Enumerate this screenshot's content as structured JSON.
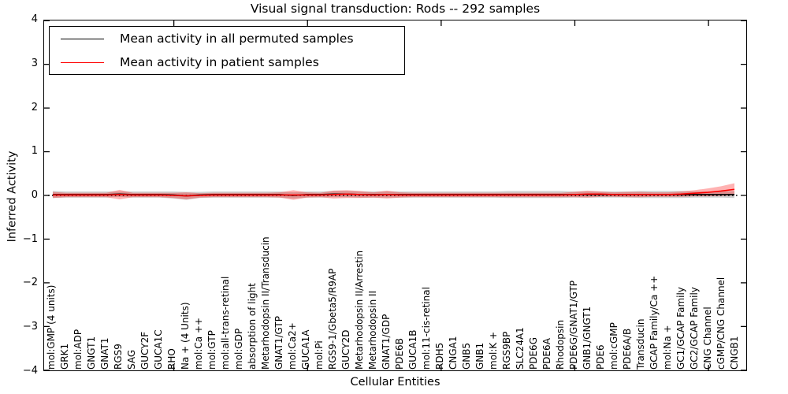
{
  "title": "Visual signal transduction: Rods -- 292 samples",
  "axes": {
    "xlabel": "Cellular Entities",
    "ylabel": "Inferred Activity"
  },
  "legend": {
    "items": [
      {
        "label": "Mean activity in all permuted samples",
        "color": "#000000"
      },
      {
        "label": "Mean activity in patient samples",
        "color": "#ff0000"
      }
    ]
  },
  "colors": {
    "permuted_line": "#000000",
    "patient_line": "#ff0000",
    "permuted_band": "rgba(110,110,110,0.32)",
    "patient_band": "rgba(255,0,0,0.30)",
    "zero_line": "#000000"
  },
  "chart_data": {
    "type": "line",
    "title": "Visual signal transduction: Rods -- 292 samples",
    "xlabel": "Cellular Entities",
    "ylabel": "Inferred Activity",
    "ylim": [
      -4,
      4
    ],
    "yticks": [
      -4,
      -3,
      -2,
      -1,
      0,
      1,
      2,
      3,
      4
    ],
    "top_axis_tick_values": [
      10,
      20,
      30,
      40,
      50
    ],
    "grid": false,
    "legend_position": "upper left",
    "zero_reference_line": "dotted",
    "bands": "mean plus/minus std shaded",
    "categories": [
      "mol:GMP (4 units)",
      "GRK1",
      "mol:ADP",
      "GNGT1",
      "GNAT1",
      "RGS9",
      "SAG",
      "GUCY2F",
      "GUCA1C",
      "RHO",
      "Na + (4 Units)",
      "mol:Ca ++",
      "mol:GTP",
      "mol:all-trans-retinal",
      "mol:GDP",
      "absorption of light",
      "Metarhodopsin II/Transducin",
      "GNAT1/GTP",
      "mol:Ca2+",
      "GUCA1A",
      "mol:Pi",
      "RGS9-1/Gbeta5/R9AP",
      "GUCY2D",
      "Metarhodopsin II/Arrestin",
      "Metarhodopsin II",
      "GNAT1/GDP",
      "PDE6B",
      "GUCA1B",
      "mol:11-cis-retinal",
      "RDH5",
      "CNGA1",
      "GNB5",
      "GNB1",
      "mol:K +",
      "RGS9BP",
      "SLC24A1",
      "PDE6G",
      "PDE6A",
      "Rhodopsin",
      "PDE6G/GNAT1/GTP",
      "GNB1/GNGT1",
      "PDE6",
      "mol:cGMP",
      "PDE6A/B",
      "Transducin",
      "GCAP Family/Ca ++",
      "mol:Na +",
      "GC1/GCAP Family",
      "GC2/GCAP Family",
      "CNG Channel",
      "cGMP/CNG Channel",
      "CNGB1"
    ],
    "series": [
      {
        "name": "Mean activity in all permuted samples",
        "color": "#000000",
        "values": [
          0.02,
          0.02,
          0.02,
          0.02,
          0.02,
          0.03,
          0.02,
          0.02,
          0.02,
          0.01,
          -0.01,
          0.01,
          0.02,
          0.02,
          0.02,
          0.02,
          0.02,
          0.02,
          0.0,
          0.02,
          0.02,
          0.03,
          0.03,
          0.02,
          0.02,
          0.02,
          0.02,
          0.02,
          0.02,
          0.02,
          0.02,
          0.02,
          0.02,
          0.02,
          0.02,
          0.02,
          0.02,
          0.02,
          0.02,
          0.02,
          0.02,
          0.02,
          0.02,
          0.02,
          0.02,
          0.02,
          0.02,
          0.02,
          0.02,
          0.02,
          0.02,
          0.02
        ],
        "std": [
          0.08,
          0.07,
          0.07,
          0.07,
          0.07,
          0.06,
          0.07,
          0.07,
          0.07,
          0.08,
          0.09,
          0.07,
          0.07,
          0.07,
          0.07,
          0.07,
          0.07,
          0.07,
          0.07,
          0.07,
          0.07,
          0.07,
          0.07,
          0.07,
          0.07,
          0.07,
          0.07,
          0.07,
          0.07,
          0.07,
          0.07,
          0.07,
          0.07,
          0.07,
          0.08,
          0.08,
          0.08,
          0.08,
          0.08,
          0.07,
          0.07,
          0.07,
          0.07,
          0.07,
          0.08,
          0.08,
          0.08,
          0.08,
          0.07,
          0.07,
          0.07,
          0.08
        ]
      },
      {
        "name": "Mean activity in patient samples",
        "color": "#ff0000",
        "values": [
          0.01,
          0.01,
          0.01,
          0.01,
          0.01,
          0.02,
          0.01,
          0.01,
          0.01,
          0.0,
          -0.01,
          0.0,
          0.01,
          0.01,
          0.01,
          0.01,
          0.01,
          0.01,
          0.01,
          0.01,
          0.01,
          0.02,
          0.03,
          0.02,
          0.01,
          0.02,
          0.01,
          0.01,
          0.01,
          0.01,
          0.01,
          0.01,
          0.01,
          0.01,
          0.01,
          0.01,
          0.01,
          0.01,
          0.01,
          0.02,
          0.03,
          0.03,
          0.02,
          0.02,
          0.02,
          0.02,
          0.02,
          0.03,
          0.05,
          0.07,
          0.1,
          0.14
        ],
        "std": [
          0.07,
          0.05,
          0.05,
          0.05,
          0.05,
          0.11,
          0.05,
          0.05,
          0.05,
          0.06,
          0.08,
          0.05,
          0.05,
          0.05,
          0.05,
          0.05,
          0.05,
          0.06,
          0.11,
          0.06,
          0.05,
          0.09,
          0.09,
          0.08,
          0.06,
          0.09,
          0.06,
          0.05,
          0.05,
          0.05,
          0.05,
          0.05,
          0.05,
          0.05,
          0.05,
          0.05,
          0.05,
          0.05,
          0.05,
          0.06,
          0.08,
          0.06,
          0.05,
          0.06,
          0.06,
          0.05,
          0.05,
          0.06,
          0.07,
          0.09,
          0.11,
          0.14
        ]
      }
    ]
  }
}
